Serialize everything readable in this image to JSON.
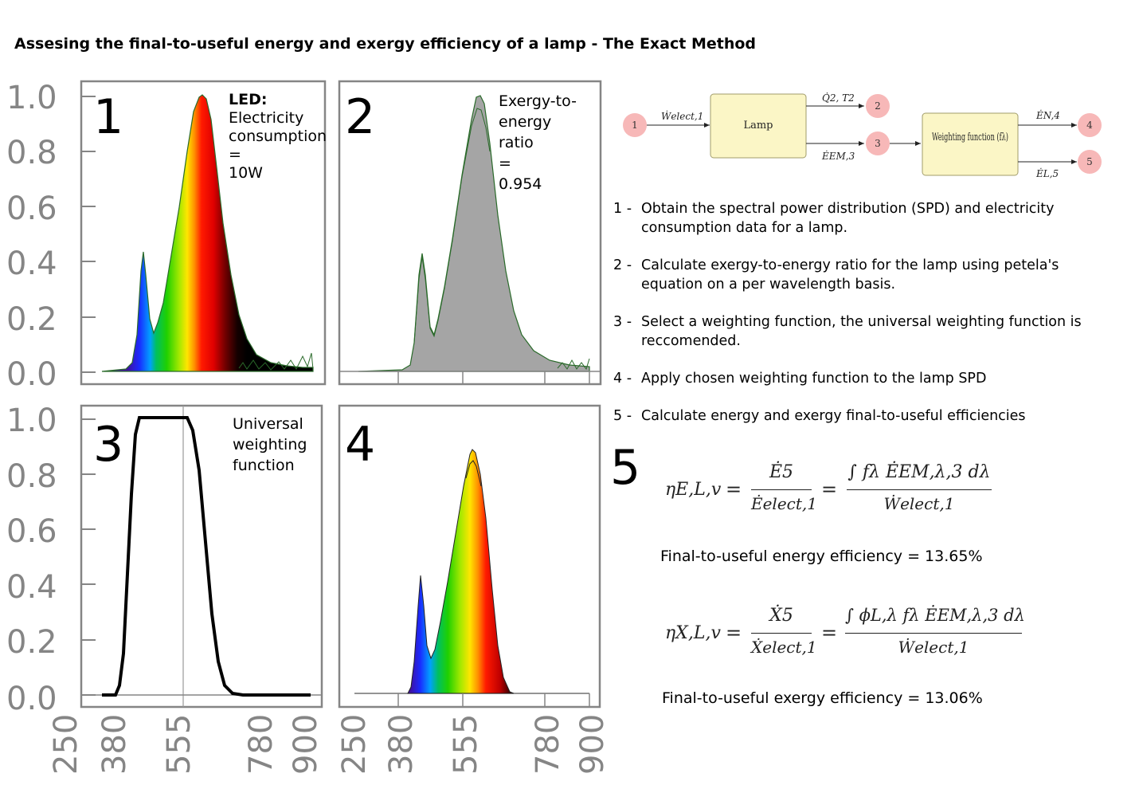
{
  "title": "Assesing the final-to-useful energy and exergy efficiency of a lamp - The Exact Method",
  "panels": [
    {
      "number": "1",
      "text_bold": "LED:",
      "text_lines": [
        "Electricity",
        "consumption",
        "=",
        "10W"
      ]
    },
    {
      "number": "2",
      "text_lines": [
        "Exergy-to-",
        "energy",
        "ratio",
        "=",
        "0.954"
      ]
    },
    {
      "number": "3",
      "text_lines": [
        "Universal",
        "weighting",
        "function"
      ]
    },
    {
      "number": "4",
      "text_lines": []
    }
  ],
  "y_ticks": [
    "1.0",
    "0.8",
    "0.6",
    "0.4",
    "0.2",
    "0.0"
  ],
  "x_ticks": [
    "250",
    "380",
    "555",
    "780",
    "900"
  ],
  "flow_diagram": {
    "nodes": [
      "1",
      "2",
      "3",
      "4",
      "5"
    ],
    "boxes": [
      "Lamp",
      "Weighting function (fλ)"
    ],
    "labels": {
      "w_elect": "Ẇelect,1",
      "q2": "Q̇2, T2",
      "e_em3": "ĖEM,3",
      "e_n4": "ĖN,4",
      "e_l5": "ĖL,5"
    }
  },
  "steps": [
    {
      "num": "1 -",
      "text": "Obtain the spectral power distribution (SPD) and electricity consumption data for a lamp."
    },
    {
      "num": "2 -",
      "text": "Calculate exergy-to-energy ratio for the lamp using petela's equation on a per wavelength basis."
    },
    {
      "num": "3 -",
      "text": "Select a weighting function, the universal weighting function is reccomended."
    },
    {
      "num": "4 -",
      "text": "Apply chosen weighting function to the lamp SPD"
    },
    {
      "num": "5 -",
      "text": "Calculate energy and exergy final-to-useful efficiencies"
    }
  ],
  "step5_number": "5",
  "equations": {
    "energy_lhs": "ηE,L,v",
    "energy_num1": "Ė5",
    "energy_den1": "Ėelect,1",
    "energy_num2": "∫ fλ ĖEM,λ,3 dλ",
    "energy_den2": "Ẇelect,1",
    "exergy_lhs": "ηX,L,v",
    "exergy_num1": "Ẋ5",
    "exergy_den1": "Ẋelect,1",
    "exergy_num2": "∫ ϕL,λ fλ ĖEM,λ,3 dλ",
    "exergy_den2": "Ẇelect,1"
  },
  "results": {
    "energy": "Final-to-useful energy efficiency = 13.65%",
    "exergy": "Final-to-useful exergy efficiency = 13.06%"
  },
  "colors": {
    "spd_gray": "#a5a5a5",
    "node_pink": "#f7b8b8",
    "box_yellow": "#fbf6c6",
    "axis_gray": "#858585"
  }
}
